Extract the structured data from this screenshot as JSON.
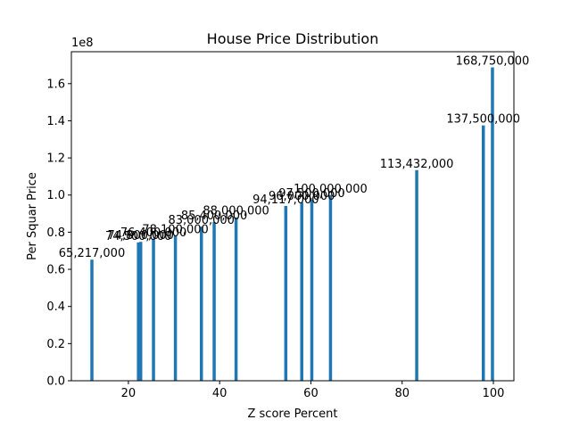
{
  "chart_data": {
    "type": "bar",
    "title": "House Price Distribution",
    "xlabel": "Z score Percent",
    "ylabel": "Per Squar Price",
    "y_offset_label": "1e8",
    "y_multiplier": 100000000,
    "xlim": [
      7.5,
      104.5
    ],
    "ylim": [
      0,
      177187500
    ],
    "x_ticks": [
      20,
      40,
      60,
      80,
      100
    ],
    "x_tick_labels": [
      "20",
      "40",
      "60",
      "80",
      "100"
    ],
    "y_ticks": [
      0,
      20000000,
      40000000,
      60000000,
      80000000,
      100000000,
      120000000,
      140000000,
      160000000
    ],
    "y_tick_labels": [
      "0.0",
      "0.2",
      "0.4",
      "0.6",
      "0.8",
      "1.0",
      "1.2",
      "1.4",
      "1.6"
    ],
    "grid": false,
    "bar_color": "#1f77b4",
    "bars": [
      {
        "x": 12.0,
        "y": 65217000,
        "label": "65,217,000"
      },
      {
        "x": 22.2,
        "y": 74500000,
        "label": "74,500,000"
      },
      {
        "x": 22.7,
        "y": 74800000,
        "label": "74,800,000"
      },
      {
        "x": 25.5,
        "y": 76400000,
        "label": "76,400,000"
      },
      {
        "x": 30.3,
        "y": 78100000,
        "label": "78,100,000"
      },
      {
        "x": 36.0,
        "y": 83000000,
        "label": "83,000,000"
      },
      {
        "x": 38.8,
        "y": 85400000,
        "label": "85,400,000"
      },
      {
        "x": 43.6,
        "y": 88000000,
        "label": "88,000,000"
      },
      {
        "x": 54.5,
        "y": 94117000,
        "label": "94,117,000"
      },
      {
        "x": 58.0,
        "y": 96000000,
        "label": "96,000,000"
      },
      {
        "x": 60.2,
        "y": 97500000,
        "label": "97,500,000"
      },
      {
        "x": 64.3,
        "y": 100000000,
        "label": "100,000,000"
      },
      {
        "x": 83.2,
        "y": 113432000,
        "label": "113,432,000"
      },
      {
        "x": 97.8,
        "y": 137500000,
        "label": "137,500,000"
      },
      {
        "x": 99.8,
        "y": 168750000,
        "label": "168,750,000"
      }
    ]
  }
}
